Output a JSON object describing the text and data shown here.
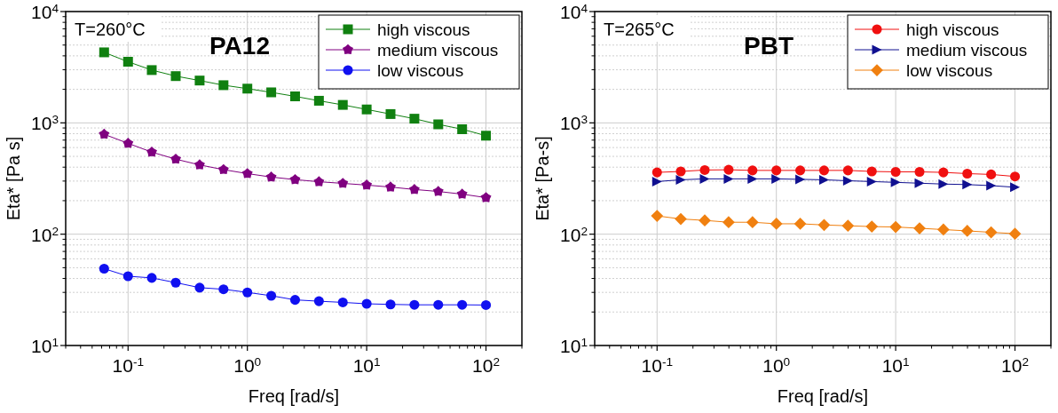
{
  "chart_data": [
    {
      "type": "line",
      "title": "PA12",
      "xlabel": "Freq [rad/s]",
      "ylabel": "Eta* [Pa s]",
      "annotations": [
        "T=260°C"
      ],
      "log": "xy",
      "grid": true,
      "legend": "top right",
      "line_style": "solid",
      "xlim": [
        0.03,
        200
      ],
      "ylim": [
        10,
        10000
      ],
      "xticks": [
        {
          "value": 0.1,
          "label": "10$^{-1}$"
        },
        {
          "value": 1,
          "label": "10$^{0}$"
        },
        {
          "value": 10,
          "label": "10$^{1}$"
        },
        {
          "value": 100,
          "label": "10$^{2}$"
        }
      ],
      "yticks": [
        {
          "value": 10,
          "label": "10$^{1}$"
        },
        {
          "value": 100,
          "label": "10$^{2}$"
        },
        {
          "value": 1000,
          "label": "10$^{3}$"
        },
        {
          "value": 10000,
          "label": "10$^{4}$"
        }
      ],
      "x": [
        0.063,
        0.1,
        0.158,
        0.251,
        0.398,
        0.631,
        1,
        1.585,
        2.512,
        3.981,
        6.31,
        10,
        15.85,
        25.12,
        39.81,
        63.1,
        100
      ],
      "series": [
        {
          "name": "high viscous",
          "color": "#108010",
          "marker": "square",
          "values": [
            4300,
            3540,
            2980,
            2630,
            2400,
            2180,
            2030,
            1880,
            1730,
            1580,
            1450,
            1320,
            1200,
            1090,
            970,
            877,
            767
          ]
        },
        {
          "name": "medium viscous",
          "color": "#800080",
          "marker": "star",
          "values": [
            790,
            655,
            546,
            472,
            419,
            380,
            350,
            326,
            309,
            296,
            286,
            276,
            265,
            252,
            242,
            229,
            213
          ]
        },
        {
          "name": "low viscous",
          "color": "#1010f0",
          "marker": "circle",
          "values": [
            49,
            41.9,
            40.5,
            36.7,
            33.1,
            32,
            30,
            28,
            25.7,
            25,
            24.4,
            23.7,
            23.4,
            23.2,
            23.2,
            23.2,
            23.1
          ]
        }
      ]
    },
    {
      "type": "line",
      "title": "PBT",
      "xlabel": "Freq [rad/s]",
      "ylabel": "Eta* [Pa-s]",
      "annotations": [
        "T=265°C"
      ],
      "log": "xy",
      "grid": true,
      "legend": "top right",
      "line_style": "solid",
      "xlim": [
        0.03,
        200
      ],
      "ylim": [
        10,
        10000
      ],
      "xticks": [
        {
          "value": 0.1,
          "label": "10$^{-1}$"
        },
        {
          "value": 1,
          "label": "10$^{0}$"
        },
        {
          "value": 10,
          "label": "10$^{1}$"
        },
        {
          "value": 100,
          "label": "10$^{2}$"
        }
      ],
      "yticks": [
        {
          "value": 10,
          "label": "10$^{1}$"
        },
        {
          "value": 100,
          "label": "10$^{2}$"
        },
        {
          "value": 1000,
          "label": "10$^{3}$"
        },
        {
          "value": 10000,
          "label": "10$^{4}$"
        }
      ],
      "x": [
        0.1,
        0.158,
        0.251,
        0.398,
        0.631,
        1,
        1.585,
        2.512,
        3.981,
        6.31,
        10,
        15.85,
        25.12,
        39.81,
        63.1,
        100
      ],
      "series": [
        {
          "name": "high viscous",
          "color": "#f01010",
          "marker": "circle",
          "values": [
            359,
            366,
            377,
            379,
            374,
            374,
            374,
            374,
            374,
            366,
            363,
            363,
            359,
            350,
            344,
            330
          ]
        },
        {
          "name": "medium viscous",
          "color": "#101090",
          "marker": "triangle-right",
          "values": [
            297,
            308,
            314,
            314,
            314,
            314,
            311,
            308,
            302,
            297,
            292,
            287,
            282,
            279,
            273,
            264
          ]
        },
        {
          "name": "low viscous",
          "color": "#f08010",
          "marker": "diamond",
          "values": [
            146,
            137,
            133,
            128,
            128,
            124,
            124,
            121,
            119,
            117,
            116,
            113,
            110,
            107,
            104,
            101
          ]
        }
      ]
    }
  ]
}
